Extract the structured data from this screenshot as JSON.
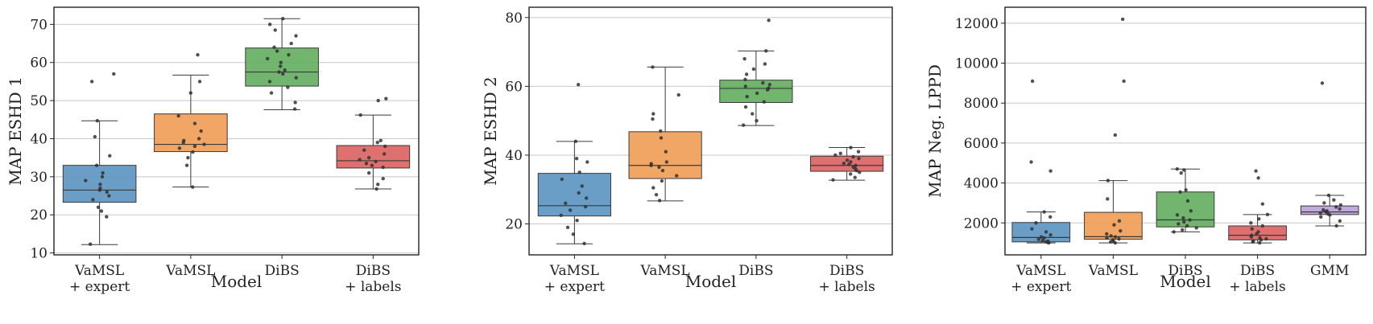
{
  "colors": {
    "expert": "#5b93c0",
    "vamsl": "#ef9c54",
    "dibs": "#63ad5f",
    "labels": "#da6161",
    "gmm": "#b9a1d6",
    "grid": "#c8c8c8",
    "point": "#333333"
  },
  "chart_data": [
    {
      "type": "box",
      "xlabel": "Model",
      "ylabel": "MAP ESHD 1",
      "ylim": [
        9.5,
        74.5
      ],
      "yticks": [
        10,
        20,
        30,
        40,
        50,
        60,
        70
      ],
      "categories": [
        {
          "label": [
            "VaMSL",
            "+ expert"
          ],
          "color": "expert",
          "whisker_low": 12.2,
          "q1": 23.3,
          "median": 26.5,
          "q3": 33.0,
          "whisker_high": 44.7,
          "points": [
            12.3,
            19.5,
            21.0,
            22.0,
            24.0,
            25.0,
            26.0,
            26.5,
            27.0,
            28.0,
            29.0,
            30.0,
            31.0,
            33.0,
            35.5,
            40.5,
            44.7,
            55.0,
            57.0
          ]
        },
        {
          "label": [
            "VaMSL"
          ],
          "color": "vamsl",
          "whisker_low": 27.3,
          "q1": 36.6,
          "median": 38.5,
          "q3": 46.5,
          "whisker_high": 56.7,
          "points": [
            27.3,
            33.0,
            35.0,
            36.5,
            37.5,
            38.0,
            38.5,
            39.0,
            39.5,
            40.0,
            42.0,
            44.0,
            46.0,
            52.0,
            55.0,
            62.0
          ]
        },
        {
          "label": [
            "DiBS"
          ],
          "color": "dibs",
          "whisker_low": 47.6,
          "q1": 53.8,
          "median": 57.5,
          "q3": 63.8,
          "whisker_high": 71.5,
          "points": [
            47.8,
            49.5,
            52.0,
            53.5,
            55.0,
            56.0,
            57.0,
            57.5,
            58.0,
            59.0,
            60.0,
            61.0,
            62.0,
            63.0,
            64.0,
            65.0,
            67.0,
            68.5,
            70.0,
            71.5
          ]
        },
        {
          "label": [
            "DiBS",
            "+ labels"
          ],
          "color": "labels",
          "whisker_low": 26.8,
          "q1": 32.3,
          "median": 34.2,
          "q3": 38.2,
          "whisker_high": 46.2,
          "points": [
            26.8,
            28.0,
            29.5,
            31.0,
            32.5,
            33.0,
            33.5,
            34.0,
            34.5,
            35.0,
            36.0,
            37.0,
            38.0,
            39.0,
            39.5,
            46.2,
            50.0,
            50.5
          ]
        }
      ]
    },
    {
      "type": "box",
      "xlabel": "Model",
      "ylabel": "MAP ESHD 2",
      "ylim": [
        11.0,
        83.0
      ],
      "yticks": [
        20,
        40,
        60,
        80
      ],
      "categories": [
        {
          "label": [
            "VaMSL",
            "+ expert"
          ],
          "color": "expert",
          "whisker_low": 14.2,
          "q1": 22.3,
          "median": 25.3,
          "q3": 34.7,
          "whisker_high": 44.0,
          "points": [
            14.3,
            17.0,
            19.0,
            21.0,
            22.5,
            24.0,
            25.0,
            26.0,
            27.5,
            29.0,
            31.0,
            33.0,
            35.0,
            38.0,
            39.0,
            44.0,
            60.5
          ]
        },
        {
          "label": [
            "VaMSL"
          ],
          "color": "vamsl",
          "whisker_low": 26.7,
          "q1": 33.2,
          "median": 37.0,
          "q3": 46.8,
          "whisker_high": 65.6,
          "points": [
            26.8,
            28.5,
            30.5,
            32.5,
            34.0,
            35.5,
            36.5,
            37.0,
            37.5,
            38.0,
            41.0,
            45.0,
            47.0,
            50.5,
            52.0,
            57.5,
            65.6
          ]
        },
        {
          "label": [
            "DiBS"
          ],
          "color": "dibs",
          "whisker_low": 48.6,
          "q1": 55.3,
          "median": 59.4,
          "q3": 61.8,
          "whisker_high": 70.3,
          "points": [
            48.7,
            50.0,
            52.0,
            54.0,
            55.5,
            57.0,
            58.0,
            59.0,
            59.5,
            60.0,
            60.5,
            61.0,
            62.0,
            63.5,
            65.0,
            66.5,
            68.0,
            70.3,
            79.2
          ]
        },
        {
          "label": [
            "DiBS",
            "+ labels"
          ],
          "color": "labels",
          "whisker_low": 32.7,
          "q1": 35.3,
          "median": 37.0,
          "q3": 39.7,
          "whisker_high": 42.2,
          "points": [
            32.8,
            33.5,
            34.5,
            35.0,
            35.5,
            36.0,
            36.5,
            37.0,
            37.3,
            37.6,
            38.0,
            38.5,
            39.0,
            39.5,
            40.0,
            40.5,
            41.0,
            42.2
          ]
        }
      ]
    },
    {
      "type": "box",
      "xlabel": "Model",
      "ylabel": "MAP Neg. LPPD",
      "ylim": [
        400,
        12800
      ],
      "yticks": [
        2000,
        4000,
        6000,
        8000,
        10000,
        12000
      ],
      "categories": [
        {
          "label": [
            "VaMSL",
            "+ expert"
          ],
          "color": "expert",
          "whisker_low": 1000,
          "q1": 1050,
          "median": 1270,
          "q3": 2020,
          "whisker_high": 2550,
          "points": [
            1000,
            1020,
            1050,
            1080,
            1120,
            1180,
            1250,
            1300,
            1400,
            1550,
            1700,
            2000,
            2300,
            2550,
            4600,
            5050,
            9100
          ]
        },
        {
          "label": [
            "VaMSL"
          ],
          "color": "vamsl",
          "whisker_low": 1000,
          "q1": 1180,
          "median": 1310,
          "q3": 2530,
          "whisker_high": 4120,
          "points": [
            1000,
            1050,
            1100,
            1150,
            1200,
            1250,
            1300,
            1350,
            1450,
            1600,
            1900,
            2100,
            3200,
            4120,
            6400,
            9100,
            12200
          ]
        },
        {
          "label": [
            "DiBS"
          ],
          "color": "dibs",
          "whisker_low": 1550,
          "q1": 1800,
          "median": 2150,
          "q3": 3550,
          "whisker_high": 4700,
          "points": [
            1550,
            1650,
            1750,
            1850,
            1950,
            2050,
            2150,
            2250,
            2400,
            2600,
            3100,
            3550,
            3650,
            4500,
            4650,
            4700
          ]
        },
        {
          "label": [
            "DiBS",
            "+ labels"
          ],
          "color": "labels",
          "whisker_low": 1000,
          "q1": 1150,
          "median": 1380,
          "q3": 1850,
          "whisker_high": 2420,
          "points": [
            1000,
            1050,
            1100,
            1150,
            1200,
            1250,
            1300,
            1380,
            1450,
            1550,
            1700,
            1850,
            2000,
            2200,
            2420,
            2950,
            4250,
            4600
          ]
        },
        {
          "label": [
            "GMM"
          ],
          "color": "gmm",
          "whisker_low": 1850,
          "q1": 2420,
          "median": 2550,
          "q3": 2850,
          "whisker_high": 3380,
          "points": [
            1850,
            2100,
            2300,
            2400,
            2450,
            2500,
            2550,
            2600,
            2650,
            2700,
            2800,
            2900,
            3000,
            3150,
            3380,
            9000
          ]
        }
      ]
    }
  ]
}
